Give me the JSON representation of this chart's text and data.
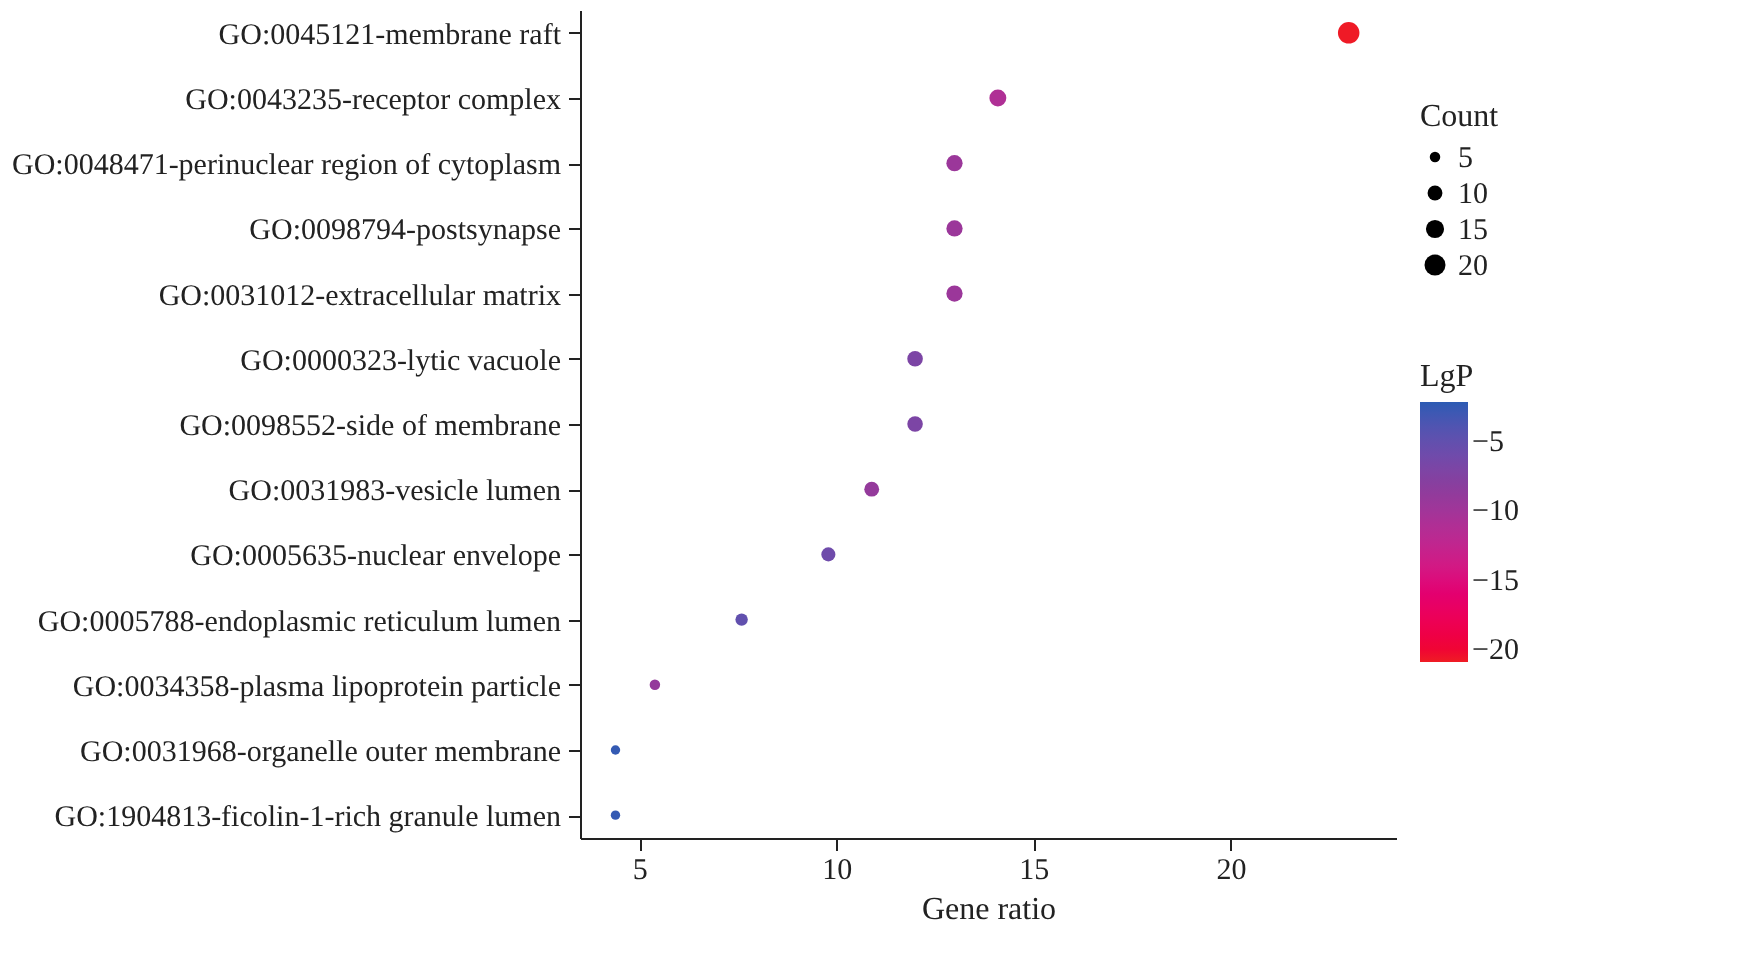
{
  "chart_data": {
    "type": "bubble",
    "xlabel": "Gene ratio",
    "legend_title": "Count",
    "clabel": "LgP",
    "categories": [
      "GO:0045121-membrane raft",
      "GO:0043235-receptor complex",
      "GO:0048471-perinuclear region of cytoplasm",
      "GO:0098794-postsynapse",
      "GO:0031012-extracellular matrix",
      "GO:0000323-lytic vacuole",
      "GO:0098552-side of membrane",
      "GO:0031983-vesicle lumen",
      "GO:0005635-nuclear envelope",
      "GO:0005788-endoplasmic reticulum lumen",
      "GO:0034358-plasma lipoprotein particle",
      "GO:0031968-organelle outer membrane",
      "GO:1904813-ficolin-1-rich granule lumen"
    ],
    "values": [
      23.0,
      14.1,
      13.0,
      13.0,
      13.0,
      12.0,
      12.0,
      10.9,
      9.8,
      7.6,
      5.4,
      4.4,
      4.4
    ],
    "sizes": [
      21,
      13,
      12,
      12,
      12,
      11,
      11,
      10,
      9,
      7,
      5,
      4,
      4
    ],
    "size_legend": [
      5,
      10,
      15,
      20
    ],
    "cvalues": [
      -20.8,
      -11,
      -9.5,
      -9.5,
      -9.5,
      -7,
      -7,
      -9,
      -6,
      -5,
      -9,
      -2.5,
      -2.5
    ],
    "clim": [
      -20.9,
      -2.2
    ],
    "cticks": [
      -5,
      -10,
      -15,
      -20
    ],
    "xlim": [
      3.5,
      24.2
    ],
    "xticks": [
      5,
      10,
      15,
      20
    ],
    "orientation": "horizontal",
    "grid": false
  }
}
